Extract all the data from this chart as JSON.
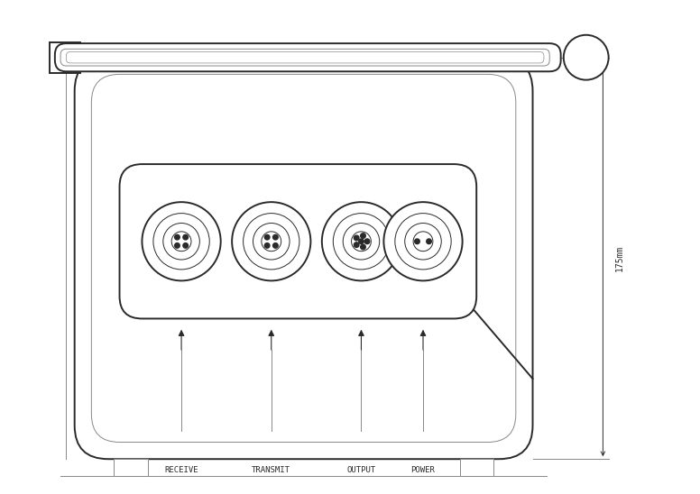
{
  "bg_color": "#ffffff",
  "line_color": "#2a2a2a",
  "line_color_light": "#888888",
  "dim_label": "175mm",
  "connector_labels": [
    "RECEIVE",
    "TRANSMIT",
    "OUTPUT",
    "POWER"
  ]
}
